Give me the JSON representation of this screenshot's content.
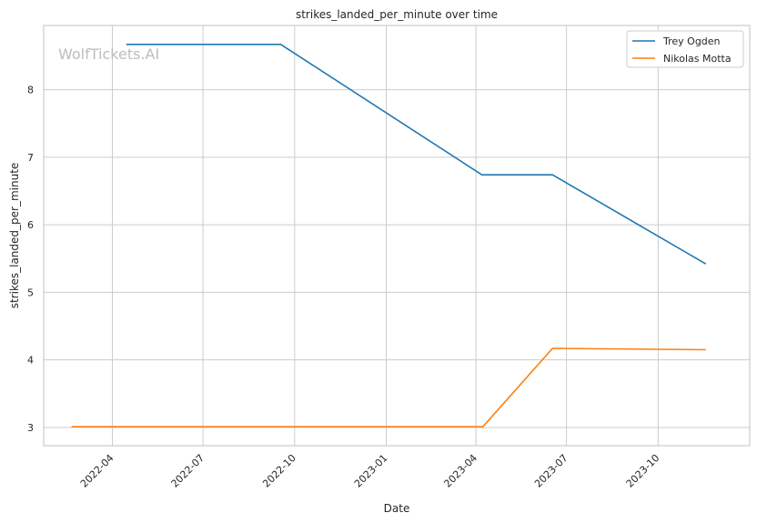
{
  "watermark": "WolfTickets.AI",
  "colors": {
    "trey": "#1f77b4",
    "nikolas": "#ff7f0e",
    "grid": "#cccccc",
    "spine": "#cccccc",
    "text": "#262626",
    "watermark": "#bdbdbd"
  },
  "chart_data": {
    "type": "line",
    "title": "strikes_landed_per_minute over time",
    "xlabel": "Date",
    "ylabel": "strikes_landed_per_minute",
    "x_ticks": [
      "2022-04",
      "2022-07",
      "2022-10",
      "2023-01",
      "2023-04",
      "2023-07",
      "2023-10"
    ],
    "y_ticks": [
      3,
      4,
      5,
      6,
      7,
      8
    ],
    "ylim": [
      2.73,
      8.95
    ],
    "xlim": [
      "2022-01-22",
      "2024-01-01"
    ],
    "grid": true,
    "legend_position": "top-right",
    "series": [
      {
        "name": "Trey Ogden",
        "color": "#1f77b4",
        "points": [
          {
            "x": "2022-04-15",
            "y": 8.67
          },
          {
            "x": "2022-09-17",
            "y": 8.67
          },
          {
            "x": "2023-04-07",
            "y": 6.74
          },
          {
            "x": "2023-06-17",
            "y": 6.74
          },
          {
            "x": "2023-11-18",
            "y": 5.42
          }
        ]
      },
      {
        "name": "Nikolas Motta",
        "color": "#ff7f0e",
        "points": [
          {
            "x": "2022-02-19",
            "y": 3.01
          },
          {
            "x": "2023-04-08",
            "y": 3.01
          },
          {
            "x": "2023-06-17",
            "y": 4.17
          },
          {
            "x": "2023-11-18",
            "y": 4.15
          }
        ]
      }
    ]
  }
}
